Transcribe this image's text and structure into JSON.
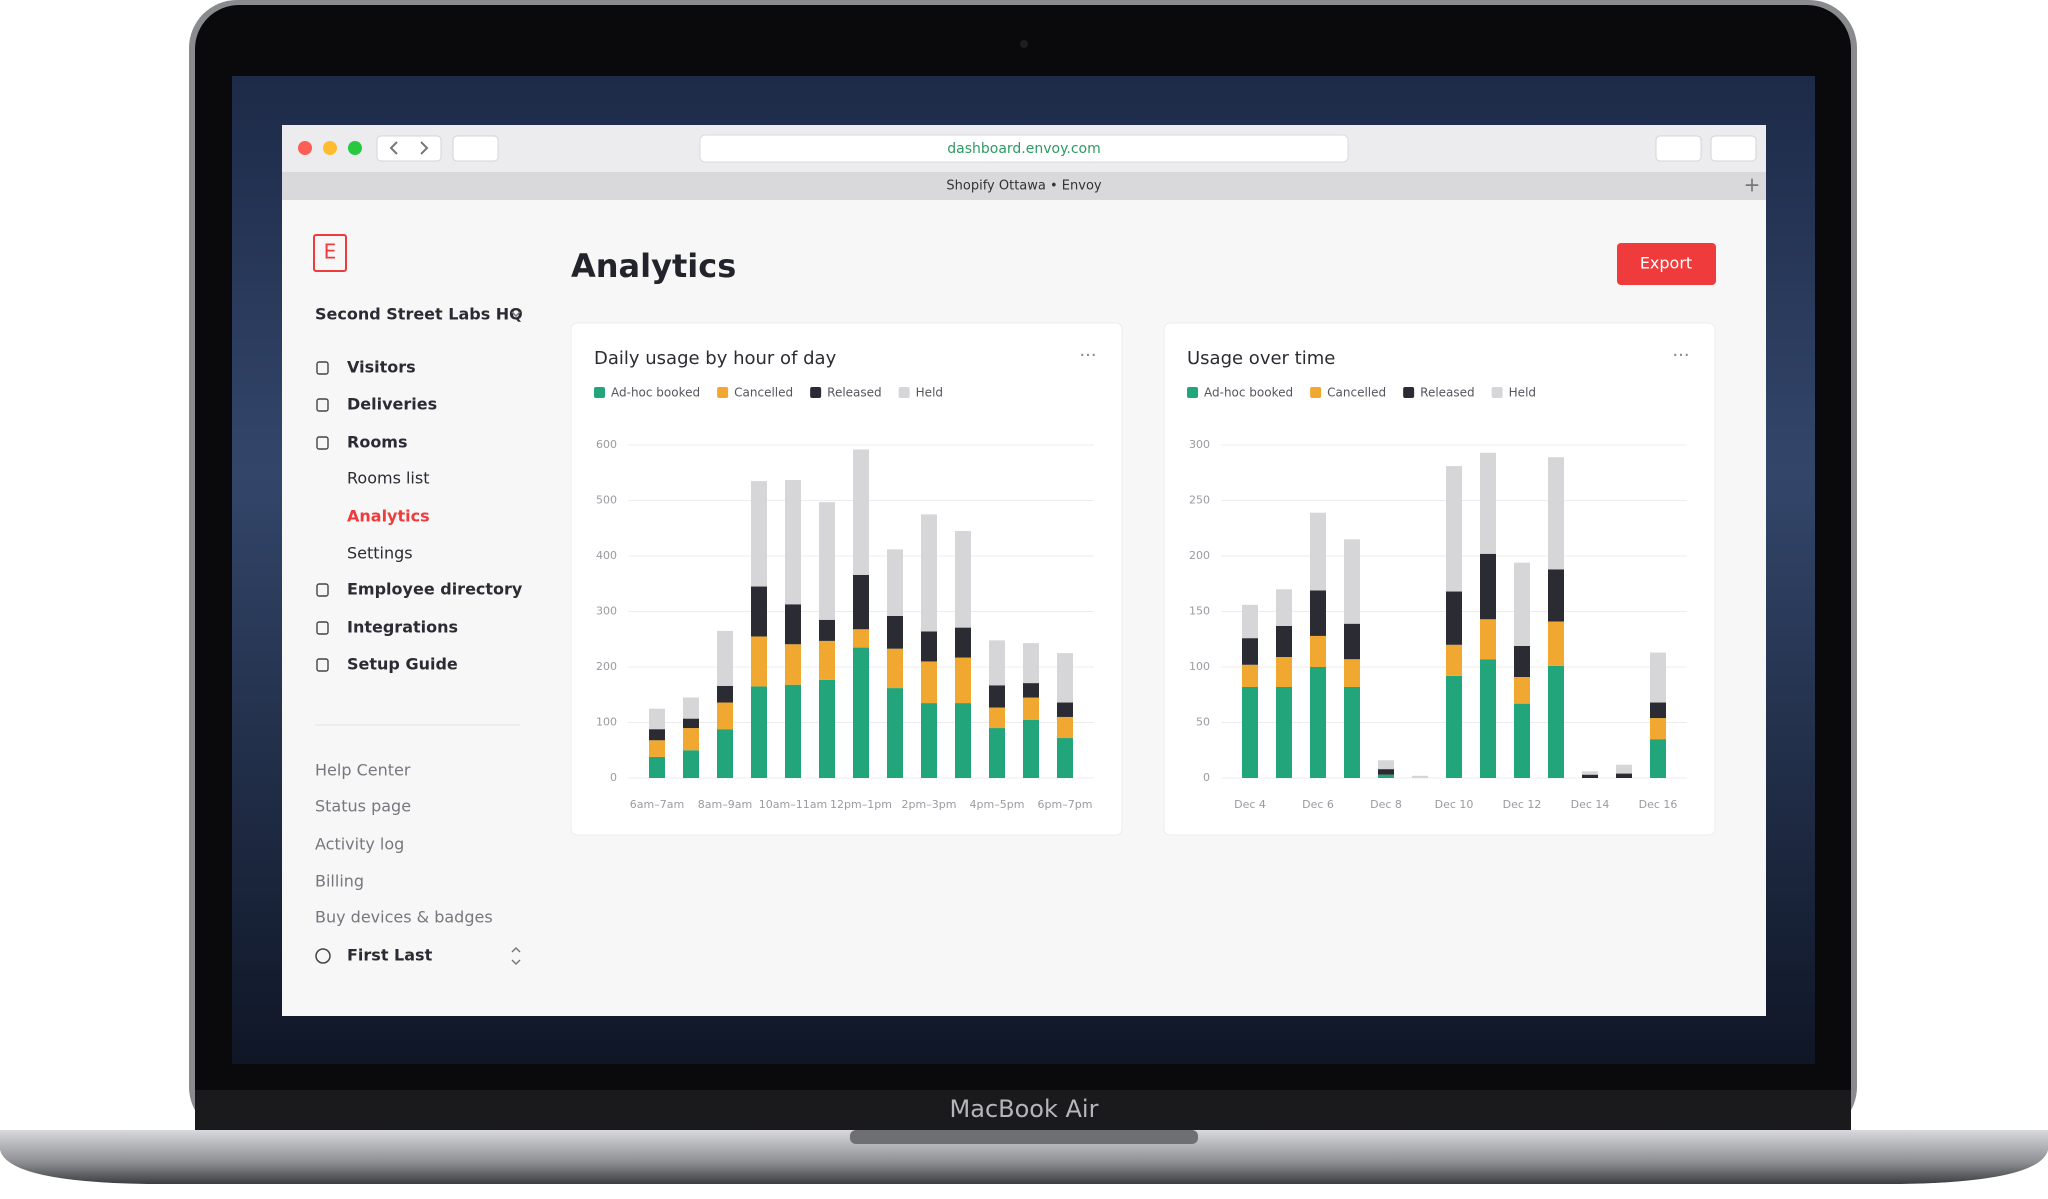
{
  "laptop_label": "MacBook Air",
  "browser": {
    "url": "dashboard.envoy.com",
    "tab_title": "Shopify Ottawa • Envoy"
  },
  "sidebar": {
    "location": "Second Street Labs HQ",
    "nav": [
      "Visitors",
      "Deliveries",
      "Rooms",
      "Rooms list",
      "Analytics",
      "Settings",
      "Employee directory",
      "Integrations",
      "Setup Guide"
    ],
    "links": [
      "Help Center",
      "Status page",
      "Activity log",
      "Billing",
      "Buy devices & badges"
    ],
    "user": "First Last"
  },
  "header": {
    "title": "Analytics",
    "export": "Export"
  },
  "charts": [
    {
      "type": "bar",
      "stacked": true,
      "title": "Daily usage by hour of day",
      "categories": [
        "6am–7am",
        null,
        "8am–9am",
        null,
        "10am–11am",
        null,
        "12pm–1pm",
        null,
        "2pm–3pm",
        null,
        "4pm–5pm",
        null,
        "6pm–7pm"
      ],
      "ylim": [
        0,
        600
      ],
      "yticks": [
        0,
        100,
        200,
        300,
        400,
        500,
        600
      ],
      "grid": true,
      "series": [
        {
          "name": "Ad-hoc booked",
          "color": "#22a57a",
          "values": [
            38,
            50,
            88,
            165,
            168,
            177,
            235,
            162,
            135,
            135,
            90,
            105,
            72
          ]
        },
        {
          "name": "Cancelled",
          "color": "#f0a830",
          "values": [
            30,
            40,
            48,
            90,
            73,
            70,
            33,
            71,
            75,
            82,
            37,
            40,
            38
          ]
        },
        {
          "name": "Released",
          "color": "#2a2b33",
          "values": [
            20,
            17,
            30,
            90,
            72,
            38,
            98,
            59,
            54,
            54,
            40,
            26,
            26
          ]
        },
        {
          "name": "Held",
          "color": "#d6d6d8",
          "values": [
            37,
            38,
            99,
            190,
            224,
            212,
            226,
            120,
            211,
            174,
            81,
            72,
            89
          ]
        }
      ]
    },
    {
      "type": "bar",
      "stacked": true,
      "title": "Usage over time",
      "categories": [
        "Dec 4",
        null,
        "Dec 6",
        null,
        "Dec 8",
        null,
        "Dec 10",
        null,
        "Dec 12",
        null,
        "Dec 14",
        null,
        "Dec 16"
      ],
      "ylim": [
        0,
        300
      ],
      "yticks": [
        0,
        50,
        100,
        150,
        200,
        250,
        300
      ],
      "grid": true,
      "series": [
        {
          "name": "Ad-hoc booked",
          "color": "#22a57a",
          "values": [
            82,
            82,
            100,
            82,
            3,
            0,
            92,
            107,
            67,
            101,
            0,
            0,
            35
          ]
        },
        {
          "name": "Cancelled",
          "color": "#f0a830",
          "values": [
            20,
            27,
            28,
            25,
            0,
            0,
            28,
            36,
            24,
            40,
            0,
            0,
            19
          ]
        },
        {
          "name": "Released",
          "color": "#2a2b33",
          "values": [
            24,
            28,
            41,
            32,
            5,
            0,
            48,
            59,
            28,
            47,
            3,
            4,
            14
          ]
        },
        {
          "name": "Held",
          "color": "#d6d6d8",
          "values": [
            30,
            33,
            70,
            76,
            8,
            2,
            113,
            91,
            75,
            101,
            3,
            8,
            45
          ]
        }
      ]
    }
  ]
}
